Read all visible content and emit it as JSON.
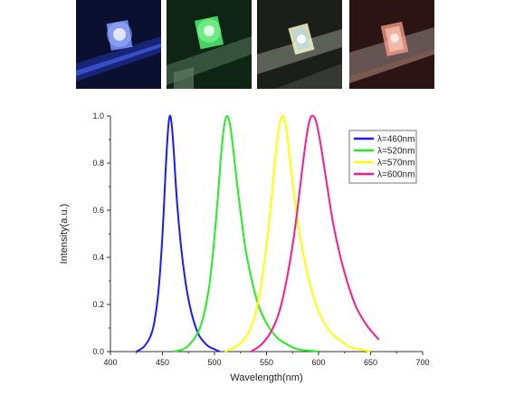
{
  "photos": [
    {
      "name": "photo-blue-sample",
      "glow": "#3a5cff",
      "bg": "#0b1030"
    },
    {
      "name": "photo-green-sample",
      "glow": "#3dff5a",
      "bg": "#0e2414"
    },
    {
      "name": "photo-yellow-sample",
      "glow": "#f4f7b8",
      "bg": "#1c1e1a"
    },
    {
      "name": "photo-red-sample",
      "glow": "#ff8f7a",
      "bg": "#2a1414"
    }
  ],
  "chart_data": {
    "type": "line",
    "xlabel": "Wavelength(nm)",
    "ylabel": "Intensity(a.u.)",
    "xlim": [
      400,
      700
    ],
    "ylim": [
      0,
      1.0
    ],
    "xticks": [
      400,
      450,
      500,
      550,
      600,
      650,
      700
    ],
    "yticks": [
      0.0,
      0.2,
      0.4,
      0.6,
      0.8,
      1.0
    ],
    "xtick_labels": [
      "400",
      "450",
      "500",
      "550",
      "600",
      "650",
      "700"
    ],
    "ytick_labels": [
      "0.0",
      "0.2",
      "0.4",
      "0.6",
      "0.8",
      "1.0"
    ],
    "grid": false,
    "legend_position": "top-right",
    "series": [
      {
        "name": "λ=460nm",
        "color": "#1a1aff",
        "x": [
          425,
          432,
          438,
          442,
          446,
          449,
          451,
          453,
          455,
          457,
          459,
          461,
          463,
          465,
          468,
          472,
          476,
          480,
          485,
          490,
          495,
          500,
          505
        ],
        "y": [
          0.0,
          0.02,
          0.06,
          0.12,
          0.25,
          0.42,
          0.58,
          0.76,
          0.92,
          1.0,
          0.96,
          0.84,
          0.7,
          0.58,
          0.44,
          0.3,
          0.2,
          0.13,
          0.07,
          0.04,
          0.02,
          0.01,
          0.0
        ]
      },
      {
        "name": "λ=520nm",
        "color": "#22ee22",
        "x": [
          460,
          470,
          478,
          485,
          490,
          495,
          499,
          503,
          506,
          509,
          512,
          515,
          518,
          522,
          526,
          530,
          536,
          542,
          550,
          560,
          570,
          580,
          590,
          600
        ],
        "y": [
          0.0,
          0.01,
          0.04,
          0.09,
          0.16,
          0.28,
          0.44,
          0.64,
          0.82,
          0.95,
          1.0,
          0.96,
          0.86,
          0.7,
          0.56,
          0.43,
          0.3,
          0.2,
          0.12,
          0.06,
          0.03,
          0.01,
          0.005,
          0.0
        ]
      },
      {
        "name": "λ=570nm",
        "color": "#ffff00",
        "x": [
          510,
          520,
          530,
          538,
          544,
          550,
          555,
          559,
          562,
          565,
          568,
          571,
          575,
          580,
          586,
          592,
          600,
          610,
          620,
          630,
          640,
          650
        ],
        "y": [
          0.0,
          0.02,
          0.06,
          0.14,
          0.26,
          0.45,
          0.66,
          0.85,
          0.95,
          1.0,
          0.97,
          0.88,
          0.72,
          0.55,
          0.4,
          0.28,
          0.17,
          0.09,
          0.05,
          0.02,
          0.01,
          0.0
        ]
      },
      {
        "name": "λ=600nm",
        "color": "#ff1a8c",
        "x": [
          535,
          545,
          555,
          563,
          570,
          576,
          581,
          585,
          589,
          592,
          595,
          598,
          602,
          607,
          613,
          620,
          628,
          636,
          645,
          652,
          658
        ],
        "y": [
          0.0,
          0.03,
          0.09,
          0.18,
          0.32,
          0.48,
          0.65,
          0.8,
          0.93,
          0.99,
          1.0,
          0.97,
          0.88,
          0.74,
          0.57,
          0.42,
          0.29,
          0.19,
          0.12,
          0.08,
          0.05
        ]
      }
    ]
  }
}
